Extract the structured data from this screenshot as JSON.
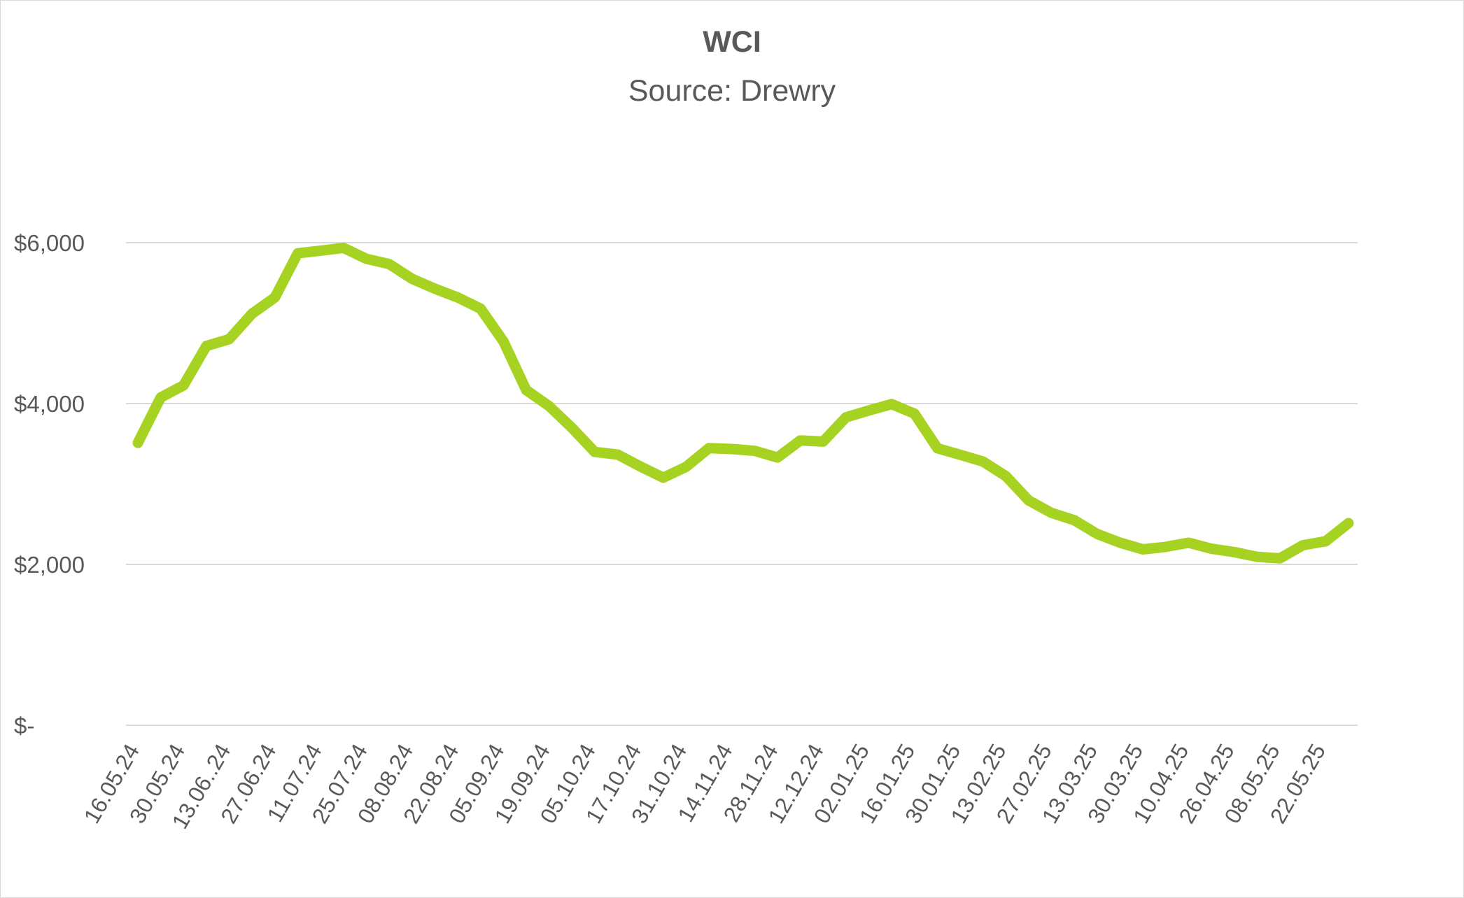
{
  "chart_data": {
    "type": "line",
    "title": "WCI",
    "subtitle": "Source: Drewry",
    "xlabel": "",
    "ylabel": "",
    "ylim": [
      0,
      6000
    ],
    "y_ticks": [
      {
        "value": 0,
        "label": "$-"
      },
      {
        "value": 2000,
        "label": "$2,000"
      },
      {
        "value": 4000,
        "label": "$4,000"
      },
      {
        "value": 6000,
        "label": "$6,000"
      }
    ],
    "grid": true,
    "legend": "none",
    "line_color": "#a6d321",
    "x_tick_labels": [
      "16.05.24",
      "30.05.24",
      "13.06..24",
      "27.06.24",
      "11.07.24",
      "25.07.24",
      "08.08.24",
      "22.08.24",
      "05.09.24",
      "19.09.24",
      "05.10.24",
      "17.10.24",
      "31.10.24",
      "14.11.24",
      "28.11.24",
      "12.12.24",
      "02.01.25",
      "16.01.25",
      "30.01.25",
      "13.02.25",
      "27.02.25",
      "13.03.25",
      "30.03.25",
      "10.04.25",
      "26.04.25",
      "08.05.25",
      "22.05.25"
    ],
    "series": [
      {
        "values": [
          3511,
          4075,
          4226,
          4716,
          4801,
          5117,
          5319,
          5868,
          5901,
          5936,
          5800,
          5734,
          5551,
          5428,
          5319,
          5181,
          4775,
          4168,
          3970,
          3698,
          3398,
          3366,
          3217,
          3078,
          3213,
          3445,
          3435,
          3412,
          3329,
          3541,
          3527,
          3829,
          3914,
          3993,
          3874,
          3444,
          3363,
          3279,
          3097,
          2795,
          2640,
          2549,
          2378,
          2270,
          2187,
          2218,
          2270,
          2195,
          2153,
          2094,
          2076,
          2238,
          2288,
          2513
        ]
      }
    ]
  }
}
